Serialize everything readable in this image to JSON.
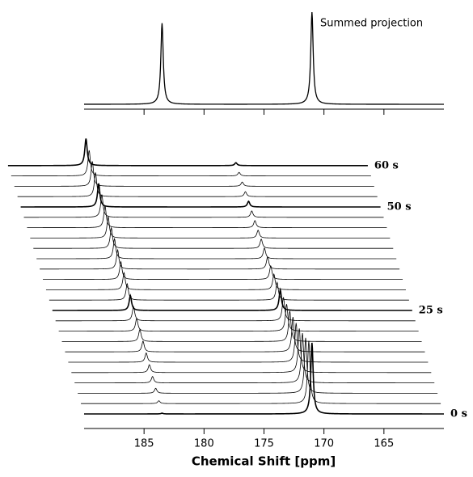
{
  "chart_data": {
    "type": "waterfall",
    "xlabel": "Chemical Shift [ppm]",
    "xlim": [
      190,
      160
    ],
    "xticks": [
      185,
      180,
      175,
      170,
      165
    ],
    "trace_labels": [
      "0 s",
      null,
      null,
      null,
      null,
      null,
      null,
      null,
      null,
      null,
      "25 s",
      null,
      null,
      null,
      null,
      null,
      null,
      null,
      null,
      null,
      "50 s",
      null,
      null,
      null,
      "60 s"
    ],
    "peaks": [
      {
        "position": 183.5,
        "values": [
          1,
          4,
          7,
          9,
          11,
          13,
          15,
          17,
          18,
          20,
          21,
          23,
          24,
          25,
          27,
          28,
          29,
          30,
          31,
          32,
          33,
          34,
          35,
          36,
          38
        ]
      },
      {
        "position": 171,
        "values": [
          100,
          88,
          78,
          70,
          62,
          55,
          49,
          43,
          38,
          33,
          29,
          25,
          22,
          19,
          17,
          15,
          13,
          11,
          10,
          9,
          8,
          7,
          6,
          5,
          4
        ]
      }
    ],
    "projection": {
      "annotation": "Summed projection",
      "values": [
        88,
        100
      ]
    }
  }
}
